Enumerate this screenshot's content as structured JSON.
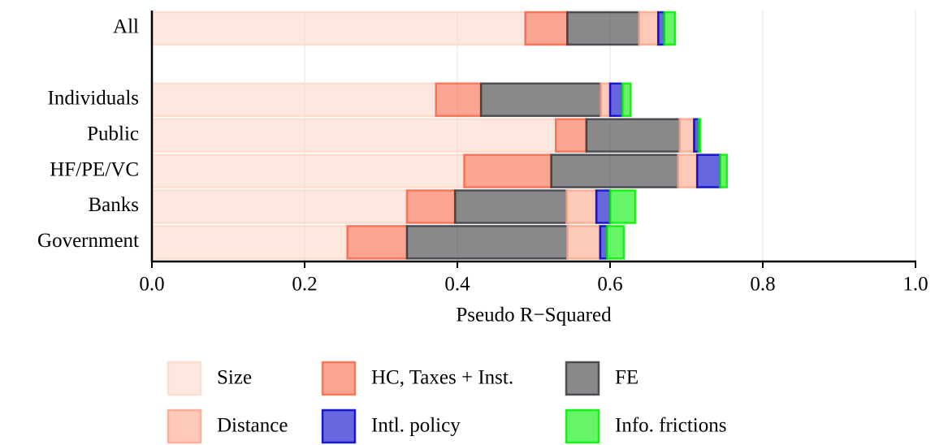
{
  "chart_data": {
    "type": "stacked-barh",
    "xlabel": "Pseudo R−Squared",
    "categories": [
      "All",
      null,
      "Individuals",
      "Public",
      "HF/PE/VC",
      "Banks",
      "Government"
    ],
    "series": [
      {
        "name": "Size",
        "color": "#fcd9ca",
        "values": [
          0.489,
          null,
          0.372,
          0.529,
          0.409,
          0.334,
          0.256
        ]
      },
      {
        "name": "HC, Taxes + Inst.",
        "color": "#f6694a",
        "values": [
          0.055,
          null,
          0.059,
          0.04,
          0.114,
          0.063,
          0.078
        ]
      },
      {
        "name": "FE",
        "color": "#3a3a40",
        "values": [
          0.094,
          null,
          0.157,
          0.122,
          0.166,
          0.146,
          0.21
        ]
      },
      {
        "name": "Distance",
        "color": "#fba78c",
        "values": [
          0.025,
          null,
          0.012,
          0.019,
          0.025,
          0.039,
          0.043
        ]
      },
      {
        "name": "Intl. policy",
        "color": "#0000c8",
        "values": [
          0.008,
          null,
          0.016,
          0.006,
          0.03,
          0.018,
          0.009
        ]
      },
      {
        "name": "Info. frictions",
        "color": "#00ee00",
        "values": [
          0.014,
          null,
          0.011,
          0.002,
          0.009,
          0.033,
          0.022
        ]
      }
    ],
    "xlim": [
      0,
      1
    ],
    "xticks": [
      {
        "value": 0,
        "label": "0.0"
      },
      0.2,
      0.4,
      0.6,
      0.8,
      {
        "value": 1,
        "label": "1.0"
      }
    ],
    "grid": true,
    "legend": "bottom"
  }
}
